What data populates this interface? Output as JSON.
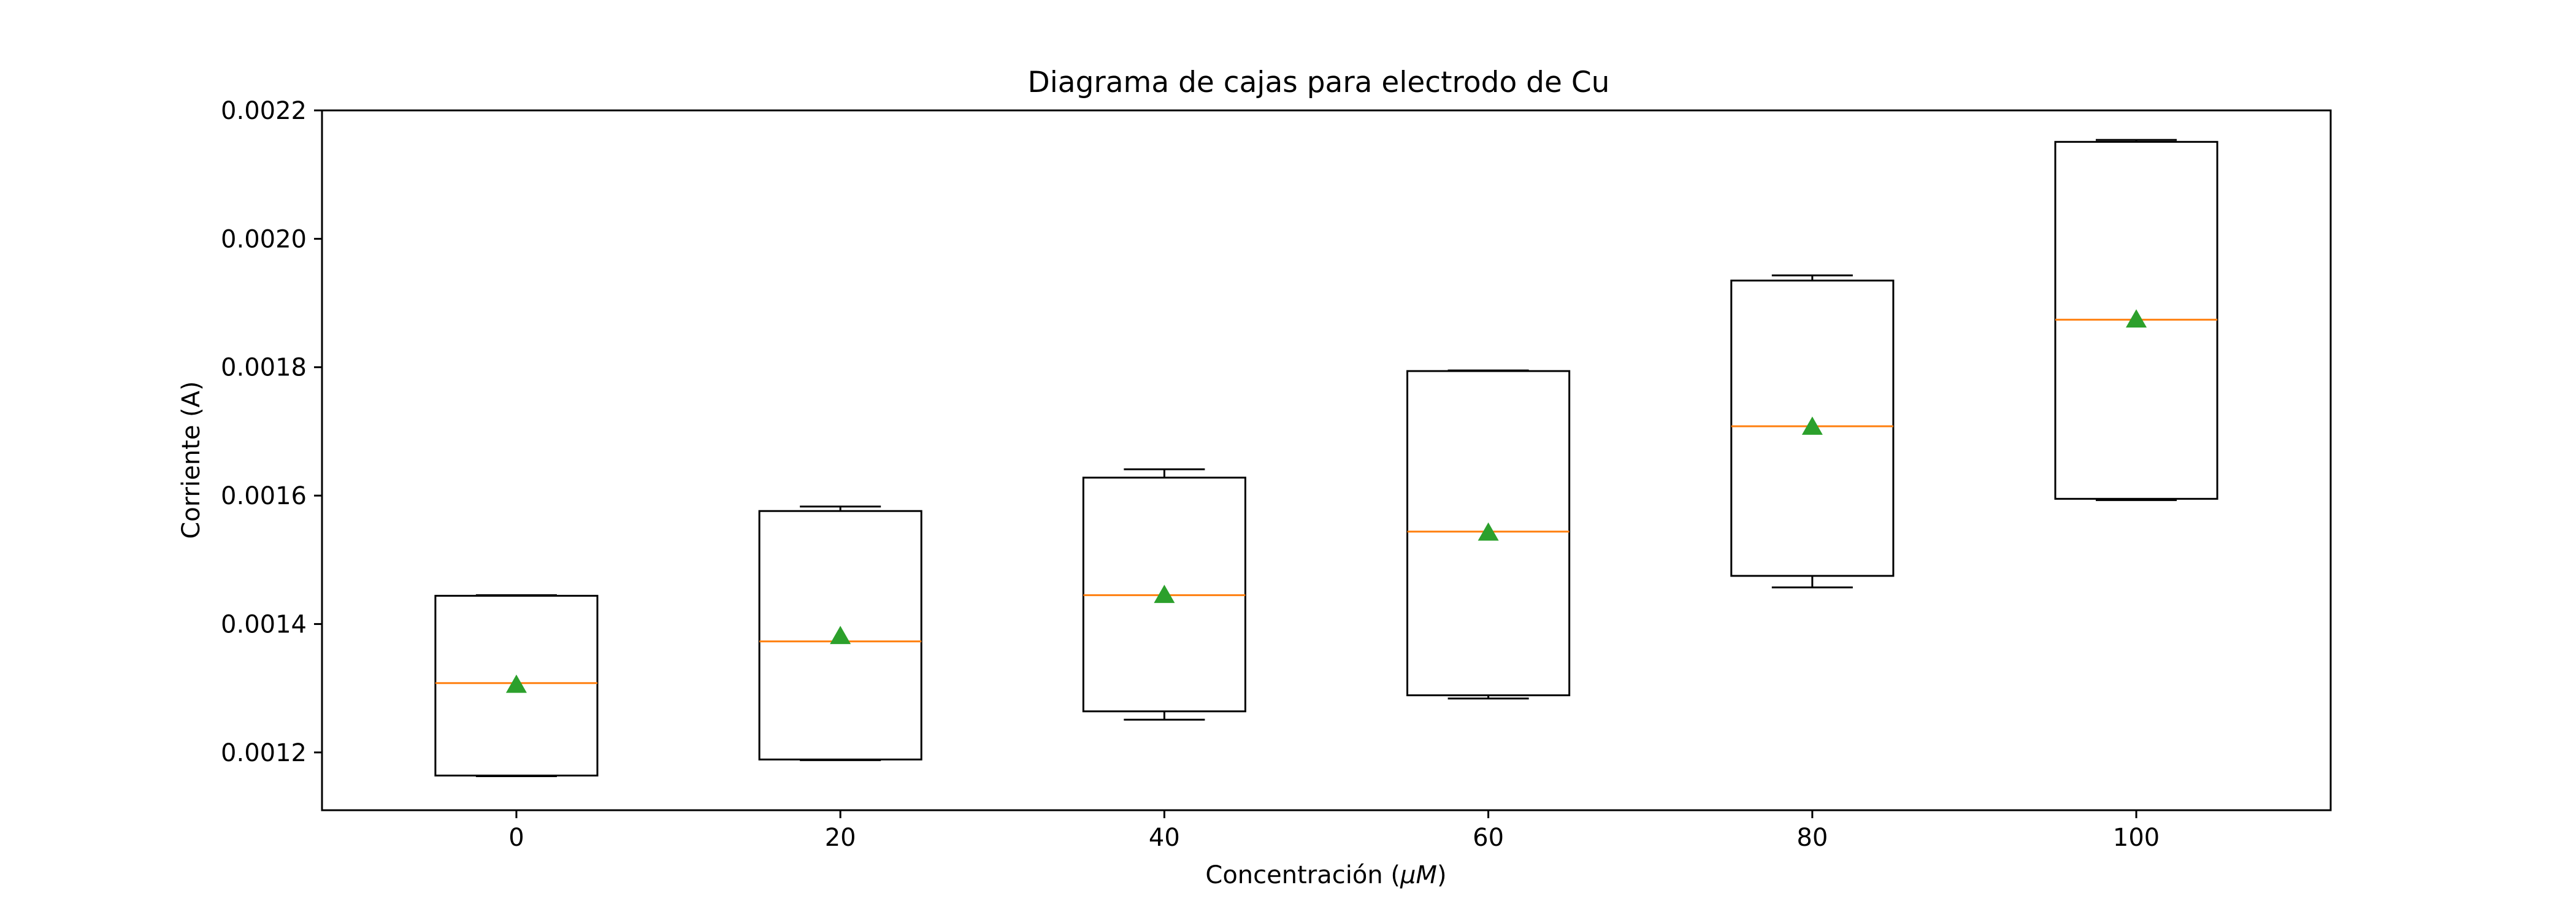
{
  "chart_data": {
    "type": "box",
    "title": "Diagrama de cajas para electrodo de Cu",
    "xlabel_prefix": "Concentración (",
    "xlabel_mu": "μ",
    "xlabel_unit": "M",
    "xlabel_suffix": ")",
    "ylabel": "Corriente (A)",
    "categories": [
      "0",
      "20",
      "40",
      "60",
      "80",
      "100"
    ],
    "ylim": [
      0.00111,
      0.0022
    ],
    "yticks": [
      "0.0012",
      "0.0014",
      "0.0016",
      "0.0018",
      "0.0020",
      "0.0022"
    ],
    "boxes": [
      {
        "whisker_low": 0.001163,
        "q1": 0.001164,
        "median": 0.001308,
        "q3": 0.001444,
        "whisker_high": 0.001445,
        "mean": 0.001305
      },
      {
        "whisker_low": 0.001188,
        "q1": 0.001189,
        "median": 0.001373,
        "q3": 0.001576,
        "whisker_high": 0.001583,
        "mean": 0.001381
      },
      {
        "whisker_low": 0.001251,
        "q1": 0.001264,
        "median": 0.001445,
        "q3": 0.001628,
        "whisker_high": 0.001641,
        "mean": 0.001445
      },
      {
        "whisker_low": 0.001284,
        "q1": 0.001289,
        "median": 0.001544,
        "q3": 0.001794,
        "whisker_high": 0.001795,
        "mean": 0.001542
      },
      {
        "whisker_low": 0.001457,
        "q1": 0.001475,
        "median": 0.001708,
        "q3": 0.001935,
        "whisker_high": 0.001943,
        "mean": 0.001707
      },
      {
        "whisker_low": 0.001593,
        "q1": 0.001595,
        "median": 0.001874,
        "q3": 0.002151,
        "whisker_high": 0.002154,
        "mean": 0.001874
      }
    ],
    "colors": {
      "box": "#000000",
      "median": "#ff7f0e",
      "mean": "#2ca02c"
    },
    "grid": false
  }
}
